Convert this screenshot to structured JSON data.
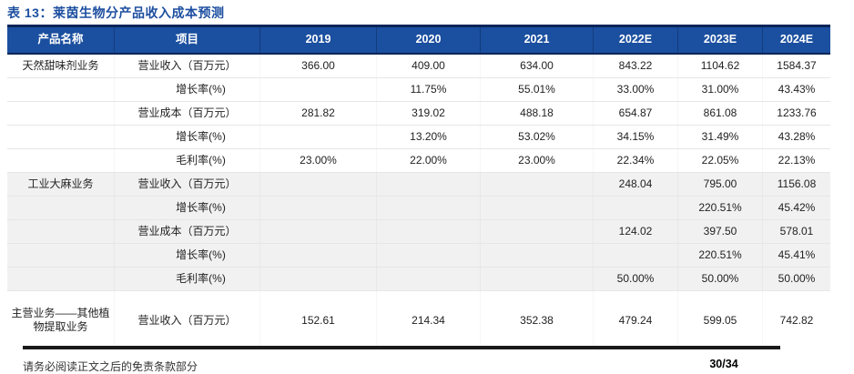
{
  "title": "表 13：莱茵生物分产品收入成本预测",
  "colors": {
    "header_bg": "#1B4F9F",
    "header_border": "#0A2558",
    "title_text": "#1D4FA0",
    "shaded_section": "#F1F1F1",
    "footer_bar": "#1A1A1A"
  },
  "table": {
    "columns": [
      "产品名称",
      "项目",
      "2019",
      "2020",
      "2021",
      "2022E",
      "2023E",
      "2024E"
    ],
    "sections": [
      {
        "name": "天然甜味剂业务",
        "shaded": false,
        "rows": [
          {
            "item": "营业收入（百万元）",
            "values": [
              "366.00",
              "409.00",
              "634.00",
              "843.22",
              "1104.62",
              "1584.37"
            ]
          },
          {
            "item": "增长率(%)",
            "values": [
              "",
              "11.75%",
              "55.01%",
              "33.00%",
              "31.00%",
              "43.43%"
            ]
          },
          {
            "item": "营业成本（百万元）",
            "values": [
              "281.82",
              "319.02",
              "488.18",
              "654.87",
              "861.08",
              "1233.76"
            ]
          },
          {
            "item": "增长率(%)",
            "values": [
              "",
              "13.20%",
              "53.02%",
              "34.15%",
              "31.49%",
              "43.28%"
            ]
          },
          {
            "item": "毛利率(%)",
            "values": [
              "23.00%",
              "22.00%",
              "23.00%",
              "22.34%",
              "22.05%",
              "22.13%"
            ]
          }
        ]
      },
      {
        "name": "工业大麻业务",
        "shaded": true,
        "rows": [
          {
            "item": "营业收入（百万元）",
            "values": [
              "",
              "",
              "",
              "248.04",
              "795.00",
              "1156.08"
            ]
          },
          {
            "item": "增长率(%)",
            "values": [
              "",
              "",
              "",
              "",
              "220.51%",
              "45.42%"
            ]
          },
          {
            "item": "营业成本（百万元）",
            "values": [
              "",
              "",
              "",
              "124.02",
              "397.50",
              "578.01"
            ]
          },
          {
            "item": "增长率(%)",
            "values": [
              "",
              "",
              "",
              "",
              "220.51%",
              "45.41%"
            ]
          },
          {
            "item": "毛利率(%)",
            "values": [
              "",
              "",
              "",
              "50.00%",
              "50.00%",
              "50.00%"
            ]
          }
        ]
      },
      {
        "name": "主营业务——其他植物提取业务",
        "shaded": false,
        "rows": [
          {
            "item": "营业收入（百万元）",
            "values": [
              "152.61",
              "214.34",
              "352.38",
              "479.24",
              "599.05",
              "742.82"
            ]
          }
        ]
      }
    ]
  },
  "footer": {
    "disclaimer": "请务必阅读正文之后的免责条款部分",
    "page": "30/34"
  }
}
